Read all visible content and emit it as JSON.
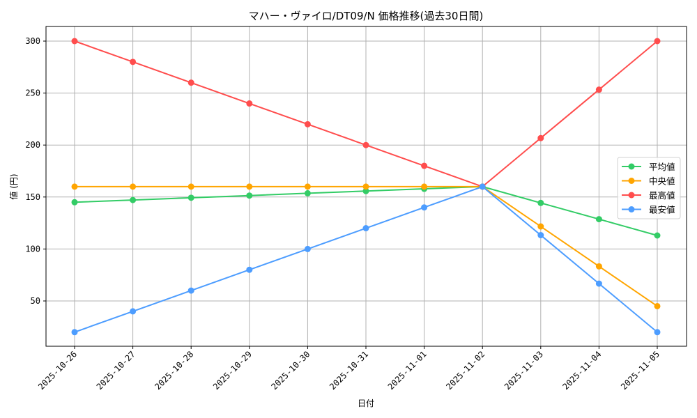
{
  "chart_data": {
    "type": "line",
    "title": "マハー・ヴァイロ/DT09/N 価格推移(過去30日間)",
    "xlabel": "日付",
    "ylabel": "値 (円)",
    "categories": [
      "2025-10-26",
      "2025-10-27",
      "2025-10-28",
      "2025-10-29",
      "2025-10-30",
      "2025-10-31",
      "2025-11-01",
      "2025-11-02",
      "2025-11-03",
      "2025-11-04",
      "2025-11-05"
    ],
    "series": [
      {
        "name": "平均値",
        "color": "#33cc66",
        "values": [
          145.0,
          147.1,
          149.3,
          151.4,
          153.6,
          155.7,
          157.9,
          160.0,
          144.3,
          128.7,
          113.0
        ]
      },
      {
        "name": "中央値",
        "color": "#ffa500",
        "values": [
          160,
          160,
          160,
          160,
          160,
          160,
          160,
          160,
          121.7,
          83.3,
          45
        ]
      },
      {
        "name": "最高値",
        "color": "#ff4d4d",
        "values": [
          300,
          280,
          260,
          240,
          220,
          200,
          180,
          160,
          206.7,
          253.3,
          300
        ]
      },
      {
        "name": "最安値",
        "color": "#4d9dff",
        "values": [
          20,
          40,
          60,
          80,
          100,
          120,
          140,
          160,
          113.3,
          66.7,
          20
        ]
      }
    ],
    "yticks": [
      50,
      100,
      150,
      200,
      250,
      300
    ],
    "ylim": [
      11,
      313
    ],
    "grid": true,
    "legend_position": "center right",
    "marker": "circle"
  }
}
